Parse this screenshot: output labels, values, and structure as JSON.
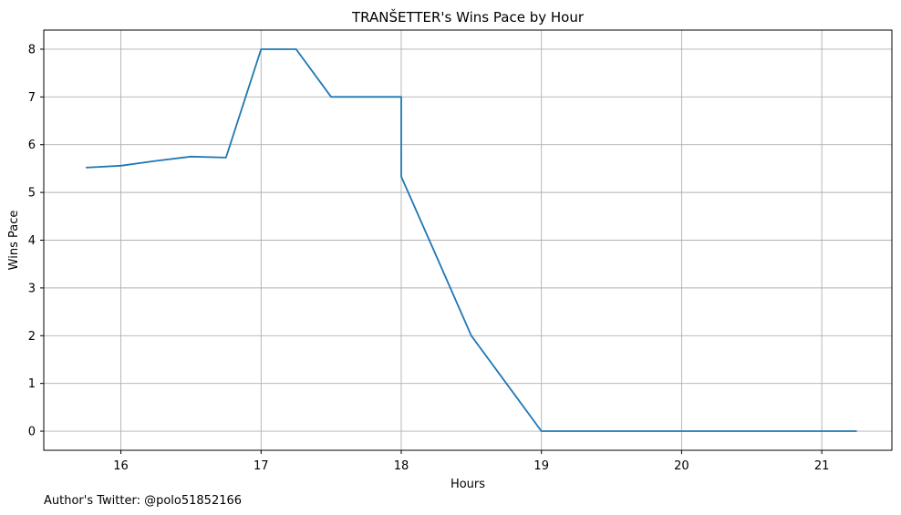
{
  "chart_data": {
    "type": "line",
    "title": "TRANŠETTER's Wins Pace by Hour",
    "xlabel": "Hours",
    "ylabel": "Wins Pace",
    "xlim": [
      15.45,
      21.5
    ],
    "ylim": [
      -0.4,
      8.4
    ],
    "xticks": [
      16,
      17,
      18,
      19,
      20,
      21
    ],
    "yticks": [
      0,
      1,
      2,
      3,
      4,
      5,
      6,
      7,
      8
    ],
    "grid": true,
    "color": "#1f77b4",
    "series": [
      {
        "x": [
          15.75,
          16.0,
          16.25,
          16.5,
          16.75,
          17.0,
          17.25,
          17.5,
          17.75,
          18.0,
          18.0,
          18.25,
          18.5,
          18.75,
          19.0,
          19.25,
          19.5,
          19.75,
          20.0,
          20.25,
          20.5,
          20.75,
          21.0,
          21.25
        ],
        "y": [
          5.52,
          5.56,
          5.66,
          5.75,
          5.73,
          8.0,
          8.0,
          7.0,
          7.0,
          7.0,
          5.33,
          3.67,
          2.0,
          1.0,
          0.0,
          0.0,
          0.0,
          0.0,
          0.0,
          0.0,
          0.0,
          0.0,
          0.0,
          0.0
        ]
      }
    ]
  },
  "footer": "Author's Twitter: @polo51852166"
}
